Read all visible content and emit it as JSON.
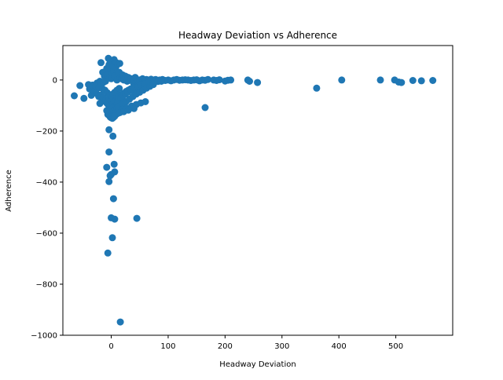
{
  "chart_data": {
    "type": "scatter",
    "title": "Headway Deviation vs Adherence",
    "xlabel": "Headway Deviation",
    "ylabel": "Adherence",
    "xlim": [
      -85,
      600
    ],
    "ylim": [
      -1000,
      135
    ],
    "xticks": [
      0,
      100,
      200,
      300,
      400,
      500
    ],
    "yticks": [
      -1000,
      -800,
      -600,
      -400,
      -200,
      0
    ],
    "xtick_labels": [
      "0",
      "100",
      "200",
      "300",
      "400",
      "500"
    ],
    "ytick_labels": [
      "−1000",
      "−800",
      "−600",
      "−400",
      "−200",
      "0"
    ],
    "grid": false,
    "marker_color": "#1f77b4",
    "series": [
      {
        "x": [
          -65,
          -55,
          -48,
          -40,
          -35,
          -30,
          -28,
          -25,
          -22,
          -20,
          -18,
          -15,
          -14,
          -12,
          -10,
          -8,
          -6,
          -5,
          -4,
          -3,
          -2,
          -1,
          0,
          1,
          2,
          3,
          4,
          5,
          6,
          7,
          8,
          9,
          10,
          12,
          14,
          15,
          16,
          18,
          20,
          22,
          25,
          28,
          30,
          32,
          35,
          38,
          40,
          42,
          45,
          48,
          50,
          55,
          58,
          60,
          62,
          65,
          68,
          70,
          72,
          75,
          78,
          80,
          85,
          90,
          95,
          100,
          105,
          110,
          115,
          120,
          125,
          130,
          135,
          140,
          145,
          150,
          155,
          160,
          165,
          170,
          180,
          185,
          190,
          200,
          205,
          210,
          240,
          243,
          257,
          361,
          405,
          473,
          498,
          505,
          510,
          530,
          545,
          565,
          -38,
          -30,
          -26,
          -20,
          -16,
          -12,
          -10,
          -8,
          -6,
          -4,
          -2,
          0,
          2,
          4,
          6,
          8,
          10,
          12,
          14,
          18,
          22,
          26,
          30,
          34,
          38,
          42,
          46,
          52,
          58,
          64,
          70,
          76,
          82,
          88,
          -33,
          -27,
          -21,
          -15,
          -11,
          -7,
          -3,
          1,
          5,
          9,
          13,
          17,
          21,
          25,
          29,
          35,
          41,
          47,
          53,
          59,
          65,
          -18,
          -14,
          -10,
          -6,
          -2,
          2,
          6,
          10,
          14,
          20,
          26,
          32,
          38,
          44,
          50,
          56,
          62,
          68,
          74,
          -8,
          -4,
          0,
          4,
          8,
          12,
          20,
          28,
          36,
          44,
          52,
          60,
          -6,
          -3,
          0,
          3,
          6,
          10,
          15,
          22,
          30,
          40,
          -2,
          0,
          2,
          4,
          6,
          -20,
          0,
          -4,
          0,
          3,
          6,
          10,
          14,
          -4,
          3,
          5,
          4,
          -8,
          6,
          -4,
          0,
          -4,
          -2,
          6,
          0,
          45,
          2,
          -6,
          16,
          165
        ],
        "y": [
          -62,
          -22,
          -72,
          -18,
          -60,
          -40,
          -28,
          -12,
          -65,
          -5,
          68,
          30,
          -10,
          15,
          -5,
          45,
          20,
          85,
          60,
          10,
          75,
          40,
          5,
          70,
          25,
          55,
          35,
          80,
          15,
          65,
          50,
          68,
          0,
          62,
          30,
          65,
          10,
          5,
          20,
          0,
          15,
          -5,
          10,
          0,
          5,
          -8,
          0,
          10,
          2,
          -5,
          0,
          5,
          0,
          -3,
          2,
          -5,
          0,
          3,
          -2,
          0,
          2,
          -4,
          0,
          2,
          -2,
          0,
          -3,
          0,
          2,
          -1,
          0,
          1,
          0,
          -2,
          0,
          1,
          -3,
          0,
          -1,
          2,
          0,
          -2,
          1,
          -4,
          -1,
          0,
          0,
          -5,
          -10,
          -32,
          0,
          0,
          0,
          -8,
          -10,
          -2,
          -3,
          -2,
          -35,
          -45,
          -52,
          -60,
          -70,
          -78,
          -85,
          -90,
          -95,
          -100,
          -105,
          -108,
          -110,
          -100,
          -95,
          -88,
          -80,
          -72,
          -65,
          -58,
          -52,
          -45,
          -40,
          -35,
          -30,
          -25,
          -22,
          -18,
          -14,
          -12,
          -10,
          -8,
          -6,
          -5,
          -20,
          -25,
          -30,
          -35,
          -40,
          -50,
          -60,
          -70,
          -80,
          -85,
          -78,
          -70,
          -62,
          -55,
          -48,
          -40,
          -32,
          -26,
          -20,
          -15,
          -12,
          -60,
          -70,
          -80,
          -90,
          -100,
          -110,
          -118,
          -112,
          -105,
          -95,
          -85,
          -75,
          -65,
          -55,
          -48,
          -40,
          -32,
          -25,
          -18,
          -120,
          -125,
          -130,
          -132,
          -128,
          -122,
          -115,
          -110,
          -102,
          -96,
          -90,
          -85,
          -135,
          -140,
          -142,
          -140,
          -138,
          -133,
          -128,
          -124,
          -118,
          -112,
          -145,
          -148,
          -150,
          -146,
          -142,
          -92,
          -80,
          -73,
          -62,
          -55,
          -48,
          -40,
          -33,
          -195,
          -220,
          -330,
          -465,
          -342,
          -360,
          -398,
          -370,
          -282,
          -375,
          -545,
          -540,
          -542,
          -618,
          -678,
          -948,
          -108
        ]
      }
    ]
  }
}
